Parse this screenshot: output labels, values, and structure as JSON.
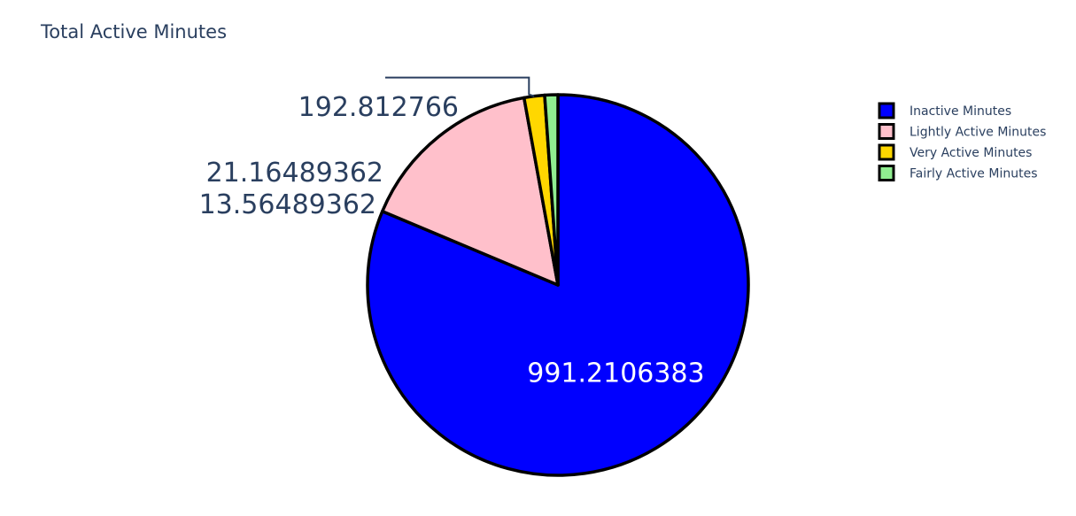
{
  "chart_data": {
    "type": "pie",
    "title": "Total Active Minutes",
    "labels": [
      "Inactive Minutes",
      "Lightly Active Minutes",
      "Very Active Minutes",
      "Fairly Active Minutes"
    ],
    "values": [
      991.2106383,
      192.812766,
      21.16489362,
      13.56489362
    ],
    "value_labels": [
      "991.2106383",
      "192.812766",
      "21.16489362",
      "13.56489362"
    ],
    "colors": [
      "#0000ff",
      "#ffc0cb",
      "#ffd700",
      "#90ee90"
    ],
    "legend": {
      "items": [
        "Inactive Minutes",
        "Lightly Active Minutes",
        "Very Active Minutes",
        "Fairly Active Minutes"
      ],
      "placement": "top-right"
    },
    "direction": "clockwise",
    "start_angle_deg": 90
  },
  "colors": {
    "text": "#2a3f5f",
    "inside_label": "#ffffff",
    "outline": "#000000"
  }
}
